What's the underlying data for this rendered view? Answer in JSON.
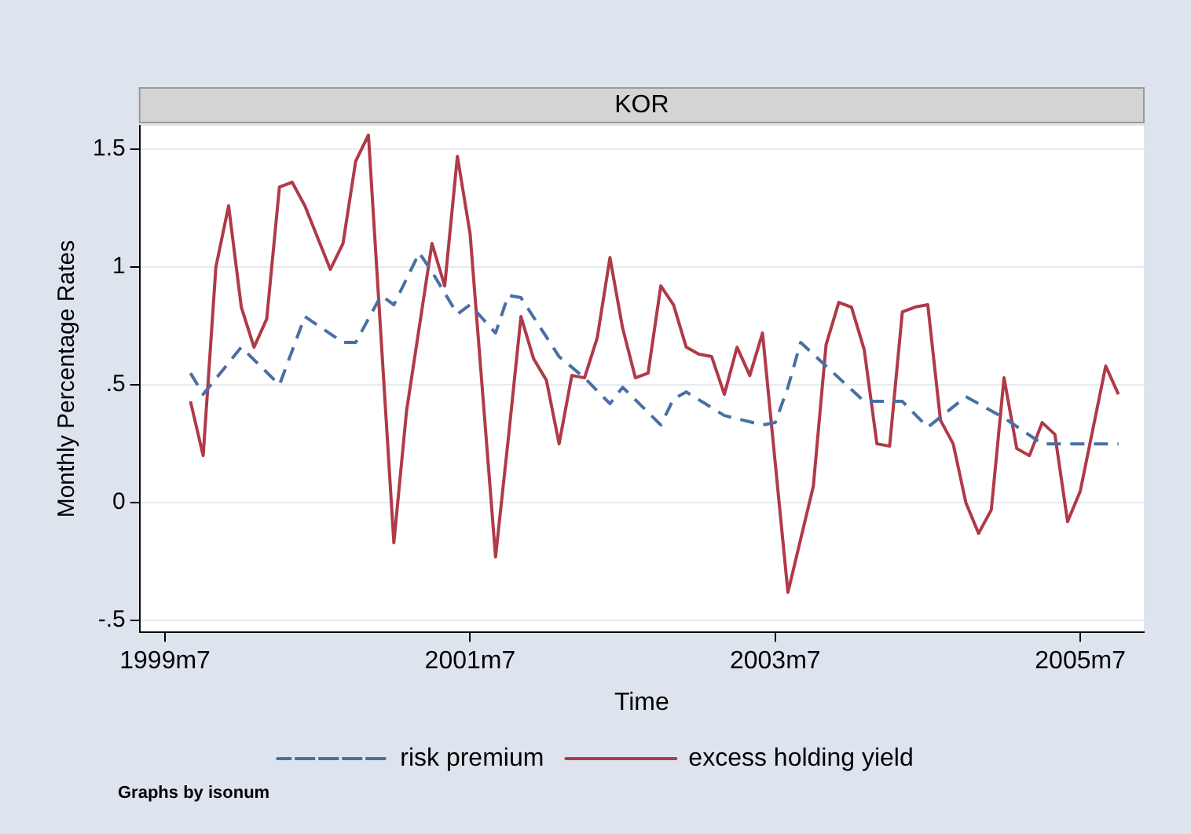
{
  "chart_data": {
    "type": "line",
    "title": "KOR",
    "xlabel": "Time",
    "ylabel": "Monthly Percentage Rates",
    "annotations": [
      "Graphs by isonum"
    ],
    "xlim": [
      "1999-05",
      "2005-12"
    ],
    "xticks": [
      {
        "value": "1999-07",
        "label": "1999m7"
      },
      {
        "value": "2001-07",
        "label": "2001m7"
      },
      {
        "value": "2003-07",
        "label": "2003m7"
      },
      {
        "value": "2005-07",
        "label": "2005m7"
      }
    ],
    "ylim": [
      -0.55,
      1.6
    ],
    "yticks": [
      {
        "value": -0.5,
        "label": "-.5"
      },
      0,
      {
        "value": 0.5,
        "label": ".5"
      },
      1,
      1.5
    ],
    "grid": "y",
    "legend": "bottom",
    "marker": "none",
    "series": [
      {
        "name": "risk premium",
        "color": "#4a6fa5",
        "line_style": "dashed",
        "x": [
          "1999-09",
          "1999-10",
          "2000-01",
          "2000-04",
          "2000-06",
          "2000-09",
          "2000-10",
          "2000-12",
          "2001-01",
          "2001-03",
          "2001-04",
          "2001-06",
          "2001-07",
          "2001-09",
          "2001-10",
          "2001-11",
          "2002-02",
          "2002-04",
          "2002-06",
          "2002-07",
          "2002-10",
          "2002-11",
          "2002-12",
          "2003-03",
          "2003-06",
          "2003-07",
          "2003-08",
          "2003-09",
          "2003-11",
          "2004-02",
          "2004-05",
          "2004-07",
          "2004-10",
          "2005-01",
          "2005-04",
          "2005-06",
          "2005-08",
          "2005-10"
        ],
        "values": [
          0.55,
          0.46,
          0.66,
          0.5,
          0.79,
          0.68,
          0.68,
          0.88,
          0.84,
          1.06,
          0.98,
          0.8,
          0.84,
          0.72,
          0.88,
          0.87,
          0.62,
          0.53,
          0.42,
          0.49,
          0.33,
          0.44,
          0.47,
          0.37,
          0.33,
          0.34,
          0.49,
          0.68,
          0.58,
          0.43,
          0.43,
          0.32,
          0.45,
          0.36,
          0.25,
          0.25,
          0.25,
          0.25
        ]
      },
      {
        "name": "excess holding yield",
        "color": "#b03a48",
        "line_style": "solid",
        "x": [
          "1999-09",
          "1999-10",
          "1999-11",
          "1999-12",
          "2000-01",
          "2000-02",
          "2000-03",
          "2000-04",
          "2000-05",
          "2000-06",
          "2000-08",
          "2000-09",
          "2000-10",
          "2000-11",
          "2001-01",
          "2001-02",
          "2001-04",
          "2001-05",
          "2001-06",
          "2001-07",
          "2001-09",
          "2001-10",
          "2001-11",
          "2001-12",
          "2002-01",
          "2002-02",
          "2002-03",
          "2002-04",
          "2002-05",
          "2002-06",
          "2002-07",
          "2002-08",
          "2002-09",
          "2002-10",
          "2002-11",
          "2002-12",
          "2003-01",
          "2003-02",
          "2003-03",
          "2003-04",
          "2003-05",
          "2003-06",
          "2003-08",
          "2003-10",
          "2003-11",
          "2003-12",
          "2004-01",
          "2004-02",
          "2004-03",
          "2004-04",
          "2004-05",
          "2004-06",
          "2004-07",
          "2004-08",
          "2004-09",
          "2004-10",
          "2004-11",
          "2004-12",
          "2005-01",
          "2005-02",
          "2005-03",
          "2005-04",
          "2005-05",
          "2005-06",
          "2005-07",
          "2005-09",
          "2005-10"
        ],
        "values": [
          0.43,
          0.2,
          1.0,
          1.26,
          0.83,
          0.66,
          0.78,
          1.34,
          1.36,
          1.26,
          0.99,
          1.1,
          1.45,
          1.56,
          -0.17,
          0.39,
          1.1,
          0.92,
          1.47,
          1.14,
          -0.23,
          0.27,
          0.79,
          0.61,
          0.52,
          0.25,
          0.54,
          0.53,
          0.7,
          1.04,
          0.74,
          0.53,
          0.55,
          0.92,
          0.84,
          0.66,
          0.63,
          0.62,
          0.46,
          0.66,
          0.54,
          0.72,
          -0.38,
          0.07,
          0.67,
          0.85,
          0.83,
          0.65,
          0.25,
          0.24,
          0.81,
          0.83,
          0.84,
          0.35,
          0.25,
          0.0,
          -0.13,
          -0.03,
          0.53,
          0.23,
          0.2,
          0.34,
          0.29,
          -0.08,
          0.05,
          0.58,
          0.46
        ]
      }
    ]
  }
}
